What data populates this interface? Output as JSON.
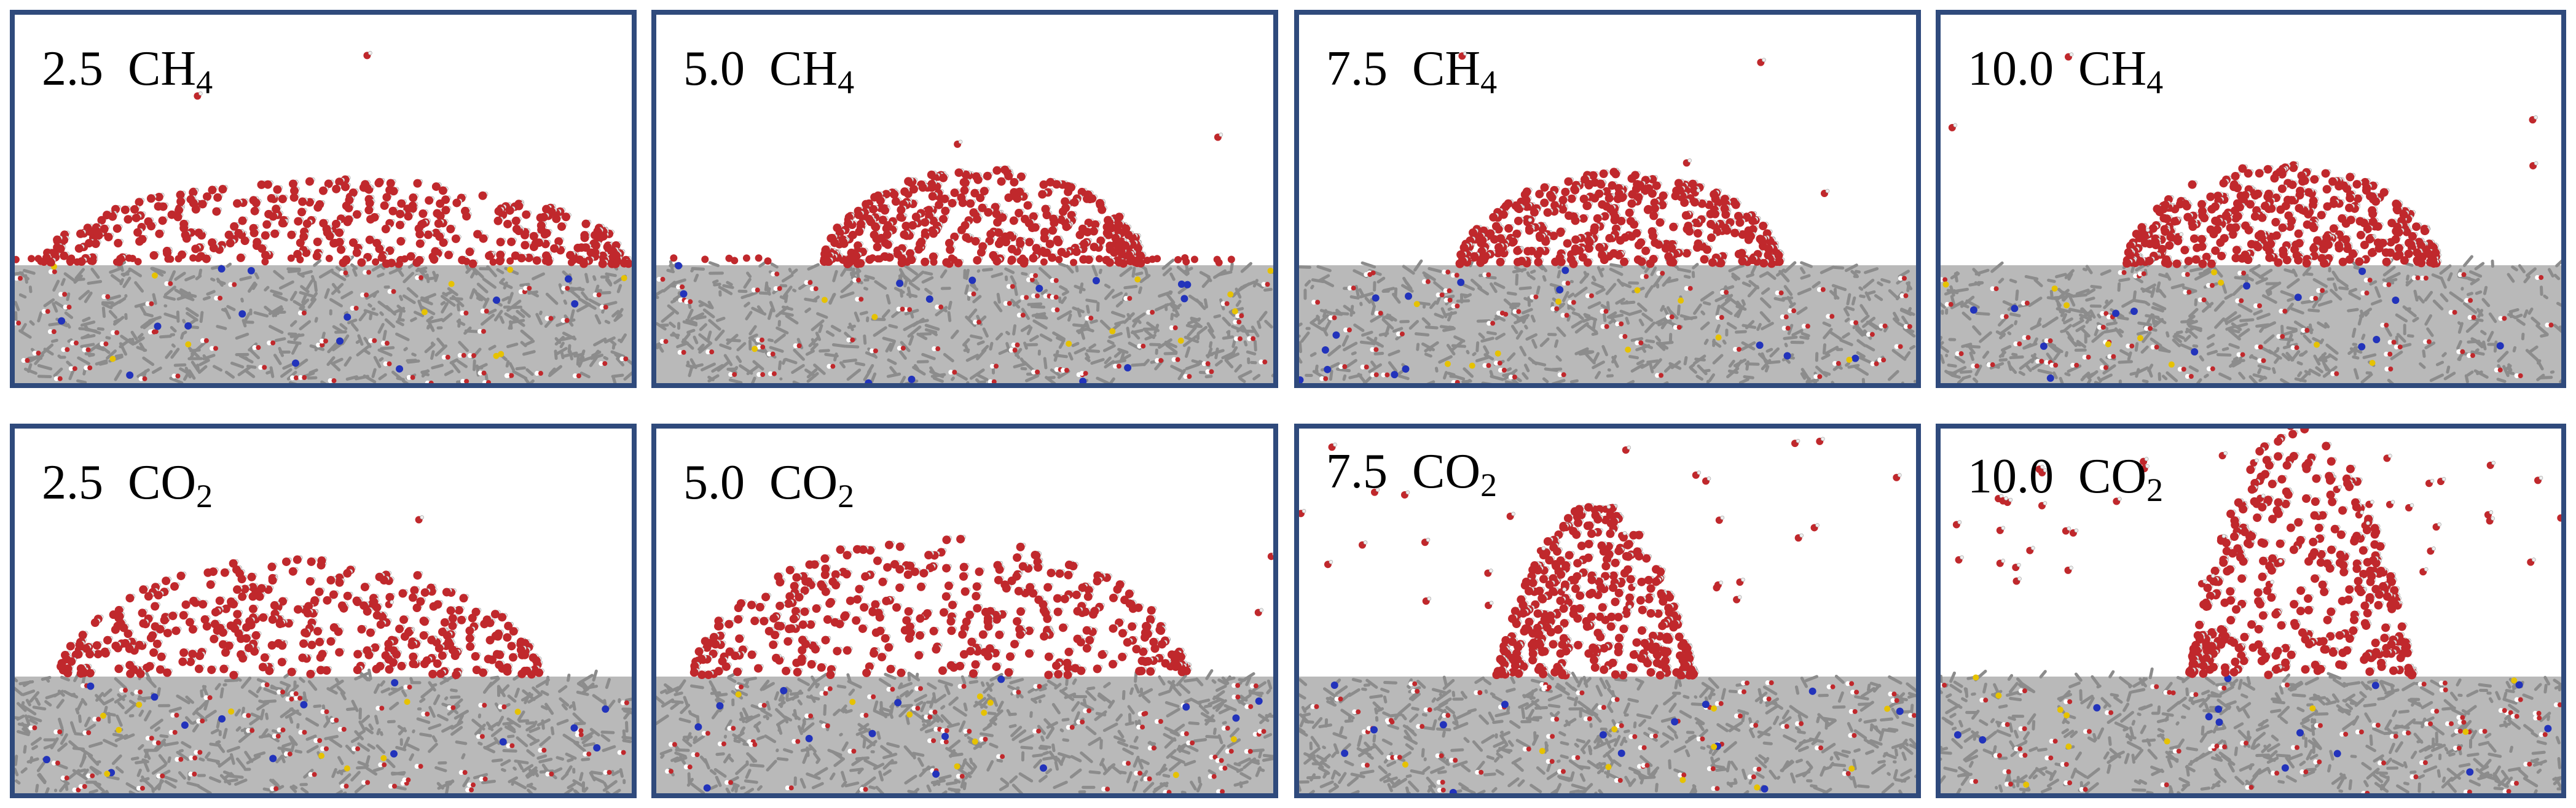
{
  "panels": [
    {
      "value": "2.5",
      "gas": "CH",
      "subscript": "4",
      "id": "ch4-2-5",
      "escape": 0
    },
    {
      "value": "5.0",
      "gas": "CH",
      "subscript": "4",
      "id": "ch4-5-0",
      "escape": 0
    },
    {
      "value": "7.5",
      "gas": "CH",
      "subscript": "4",
      "id": "ch4-7-5",
      "escape": 1
    },
    {
      "value": "10.0",
      "gas": "CH",
      "subscript": "4",
      "id": "ch4-10-0",
      "escape": 1
    },
    {
      "value": "2.5",
      "gas": "CO",
      "subscript": "2",
      "id": "co2-2-5",
      "escape": 0
    },
    {
      "value": "5.0",
      "gas": "CO",
      "subscript": "2",
      "id": "co2-5-0",
      "escape": 0
    },
    {
      "value": "7.5",
      "gas": "CO",
      "subscript": "2",
      "id": "co2-7-5",
      "escape": 2
    },
    {
      "value": "10.0",
      "gas": "CO",
      "subscript": "2",
      "id": "co2-10-0",
      "escape": 3
    }
  ],
  "colors": {
    "frame": "#2f4a7c",
    "water_oxygen": "#c0282c",
    "water_hydrogen": "#eeeeee",
    "substrate": "#8c8c8c",
    "substrate_highlight_blue": "#2233bb",
    "substrate_highlight_yellow": "#e6c200",
    "substrate_highlight_red": "#c0282c"
  }
}
